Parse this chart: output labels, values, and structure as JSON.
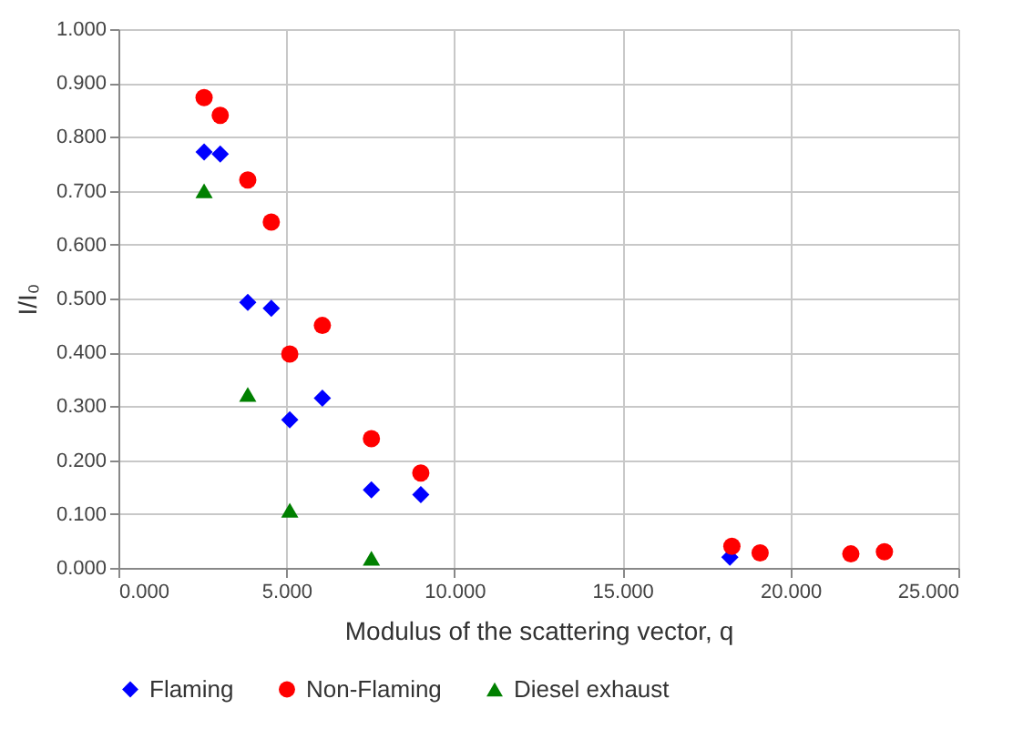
{
  "chart_data": {
    "type": "scatter",
    "xlabel": "Modulus of the scattering vector, q",
    "ylabel": "I/I₀",
    "xlim": [
      0,
      25
    ],
    "ylim": [
      0,
      1
    ],
    "xticks": [
      {
        "value": 0,
        "label": "0.000"
      },
      {
        "value": 5,
        "label": "5.000"
      },
      {
        "value": 10,
        "label": "10.000"
      },
      {
        "value": 15,
        "label": "15.000"
      },
      {
        "value": 20,
        "label": "20.000"
      },
      {
        "value": 25,
        "label": "25.000"
      }
    ],
    "yticks": [
      {
        "value": 0,
        "label": "0.000"
      },
      {
        "value": 0.1,
        "label": "0.100"
      },
      {
        "value": 0.2,
        "label": "0.200"
      },
      {
        "value": 0.3,
        "label": "0.300"
      },
      {
        "value": 0.4,
        "label": "0.400"
      },
      {
        "value": 0.5,
        "label": "0.500"
      },
      {
        "value": 0.6,
        "label": "0.600"
      },
      {
        "value": 0.7,
        "label": "0.700"
      },
      {
        "value": 0.8,
        "label": "0.800"
      },
      {
        "value": 0.9,
        "label": "0.900"
      },
      {
        "value": 1,
        "label": "1.000"
      }
    ],
    "grid": true,
    "legend": "bottom",
    "series": [
      {
        "name": "Flaming",
        "color": "#0000ff",
        "marker": "diamond",
        "x": [
          2.55,
          3.03,
          3.85,
          4.55,
          5.1,
          6.07,
          7.53,
          9.0,
          18.2
        ],
        "values": [
          0.772,
          0.768,
          0.493,
          0.482,
          0.275,
          0.315,
          0.145,
          0.136,
          0.02
        ]
      },
      {
        "name": "Non-Flaming",
        "color": "#ff0000",
        "marker": "circle",
        "x": [
          2.55,
          3.03,
          3.85,
          4.55,
          5.1,
          6.07,
          7.53,
          9.0,
          18.26,
          19.1,
          21.8,
          22.8
        ],
        "values": [
          0.873,
          0.84,
          0.72,
          0.642,
          0.397,
          0.45,
          0.24,
          0.176,
          0.04,
          0.028,
          0.026,
          0.03
        ]
      },
      {
        "name": "Diesel exhaust",
        "color": "#008000",
        "marker": "triangle",
        "x": [
          2.55,
          3.85,
          5.1,
          7.53
        ],
        "values": [
          0.7,
          0.322,
          0.107,
          0.018
        ]
      }
    ]
  }
}
